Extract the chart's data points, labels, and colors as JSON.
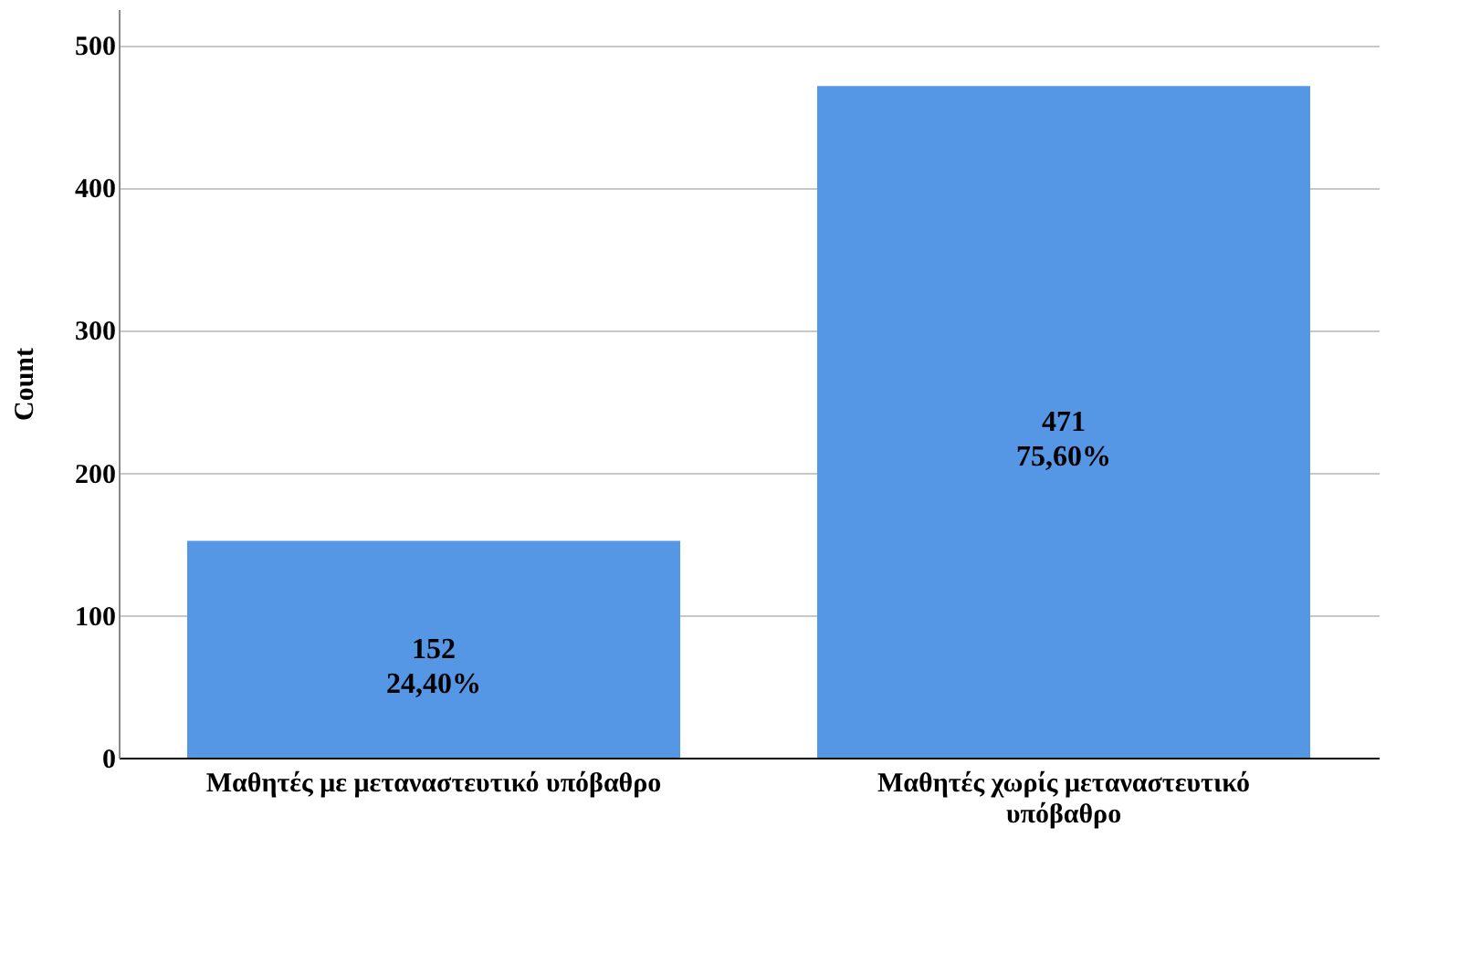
{
  "chart_data": {
    "type": "bar",
    "ylabel": "Count",
    "categories": [
      "Μαθητές με μεταναστευτικό υπόβαθρο",
      "Μαθητές χωρίς μεταναστευτικό υπόβαθρο"
    ],
    "values": [
      152,
      471
    ],
    "value_labels": [
      "152\n24,40%",
      "471\n75,60%"
    ],
    "color": "#5596e5",
    "ylim": [
      0,
      525
    ],
    "yticks": [
      0,
      100,
      200,
      300,
      400,
      500
    ],
    "grid": "y"
  }
}
